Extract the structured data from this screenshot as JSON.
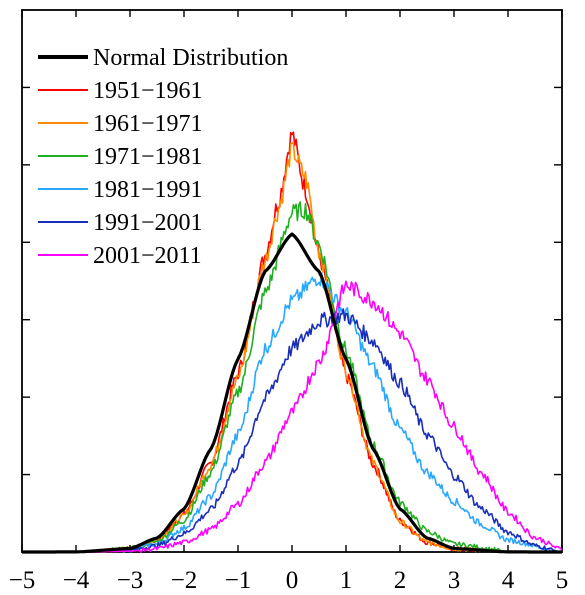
{
  "chart_data": {
    "type": "line",
    "title": "",
    "xlabel": "",
    "ylabel": "",
    "xlim": [
      -5,
      5
    ],
    "ylim": [
      0,
      0.68
    ],
    "x_ticks": [
      -5,
      -4,
      -3,
      -2,
      -1,
      0,
      1,
      2,
      3,
      4,
      5
    ],
    "x_tick_labels": [
      "−5",
      "−4",
      "−3",
      "−2",
      "−1",
      "0",
      "1",
      "2",
      "3",
      "4",
      "5"
    ],
    "y_tick_labels_shown": false,
    "legend_position": "top-left",
    "series": [
      {
        "name": "Normal Distribution",
        "color": "#000000",
        "line_width": "thick",
        "x": [
          -5,
          -4,
          -3,
          -2.5,
          -2,
          -1.5,
          -1,
          -0.5,
          0,
          0.5,
          1,
          1.5,
          2,
          2.5,
          3,
          4,
          5
        ],
        "y": [
          0.0,
          0.0001,
          0.0044,
          0.0175,
          0.054,
          0.1295,
          0.242,
          0.352,
          0.399,
          0.352,
          0.242,
          0.1295,
          0.054,
          0.0175,
          0.0044,
          0.0001,
          0.0
        ]
      },
      {
        "name": "1951−1961",
        "color": "#ff0000",
        "x": [
          -5,
          -4,
          -3,
          -2.5,
          -2,
          -1.5,
          -1,
          -0.5,
          -0.25,
          0,
          0.25,
          0.5,
          1,
          1.5,
          2,
          2.5,
          3,
          4,
          5
        ],
        "y": [
          0.0,
          0.0,
          0.004,
          0.015,
          0.047,
          0.112,
          0.224,
          0.372,
          0.44,
          0.525,
          0.455,
          0.372,
          0.222,
          0.11,
          0.039,
          0.012,
          0.004,
          0.0,
          0.0
        ]
      },
      {
        "name": "1961−1971",
        "color": "#ff8c00",
        "x": [
          -5,
          -4,
          -3,
          -2.5,
          -2,
          -1.5,
          -1,
          -0.5,
          -0.25,
          0,
          0.25,
          0.5,
          1,
          1.5,
          2,
          2.5,
          3,
          4,
          5
        ],
        "y": [
          0.0,
          0.0,
          0.004,
          0.015,
          0.045,
          0.11,
          0.218,
          0.365,
          0.43,
          0.505,
          0.47,
          0.378,
          0.228,
          0.112,
          0.038,
          0.012,
          0.004,
          0.0,
          0.0
        ]
      },
      {
        "name": "1971−1981",
        "color": "#22b022",
        "x": [
          -5,
          -4,
          -3,
          -2.5,
          -2,
          -1.5,
          -1,
          -0.5,
          0,
          0.25,
          0.5,
          1,
          1.5,
          2,
          2.5,
          3,
          4,
          5
        ],
        "y": [
          0.0,
          0.0,
          0.004,
          0.013,
          0.04,
          0.1,
          0.2,
          0.325,
          0.425,
          0.43,
          0.385,
          0.252,
          0.135,
          0.062,
          0.026,
          0.01,
          0.001,
          0.0
        ]
      },
      {
        "name": "1981−1991",
        "color": "#2aa8ff",
        "x": [
          -5,
          -4,
          -3,
          -2.5,
          -2,
          -1.5,
          -1,
          -0.5,
          0,
          0.5,
          1,
          1.5,
          2,
          2.5,
          3,
          3.5,
          4,
          5
        ],
        "y": [
          0.0,
          0.0,
          0.003,
          0.01,
          0.03,
          0.07,
          0.147,
          0.255,
          0.315,
          0.345,
          0.3,
          0.232,
          0.154,
          0.1,
          0.064,
          0.035,
          0.015,
          0.0
        ]
      },
      {
        "name": "1991−2001",
        "color": "#1a2fb8",
        "x": [
          -5,
          -4,
          -3,
          -2.5,
          -2,
          -1.5,
          -1,
          -0.5,
          0,
          0.5,
          1,
          1.5,
          2,
          2.5,
          3,
          3.5,
          4,
          4.5,
          5
        ],
        "y": [
          0.0,
          0.0,
          0.002,
          0.008,
          0.023,
          0.053,
          0.11,
          0.192,
          0.255,
          0.29,
          0.297,
          0.265,
          0.212,
          0.148,
          0.096,
          0.055,
          0.025,
          0.008,
          0.0
        ]
      },
      {
        "name": "2001−2011",
        "color": "#ff00ff",
        "x": [
          -5,
          -4,
          -3,
          -2.5,
          -2,
          -1.5,
          -1,
          -0.5,
          0,
          0.5,
          1,
          1.5,
          2,
          2.5,
          3,
          3.5,
          4,
          4.5,
          5
        ],
        "y": [
          0.0,
          0.0,
          0.001,
          0.004,
          0.012,
          0.028,
          0.06,
          0.112,
          0.175,
          0.238,
          0.335,
          0.315,
          0.275,
          0.217,
          0.157,
          0.1,
          0.05,
          0.018,
          0.003
        ]
      }
    ]
  }
}
